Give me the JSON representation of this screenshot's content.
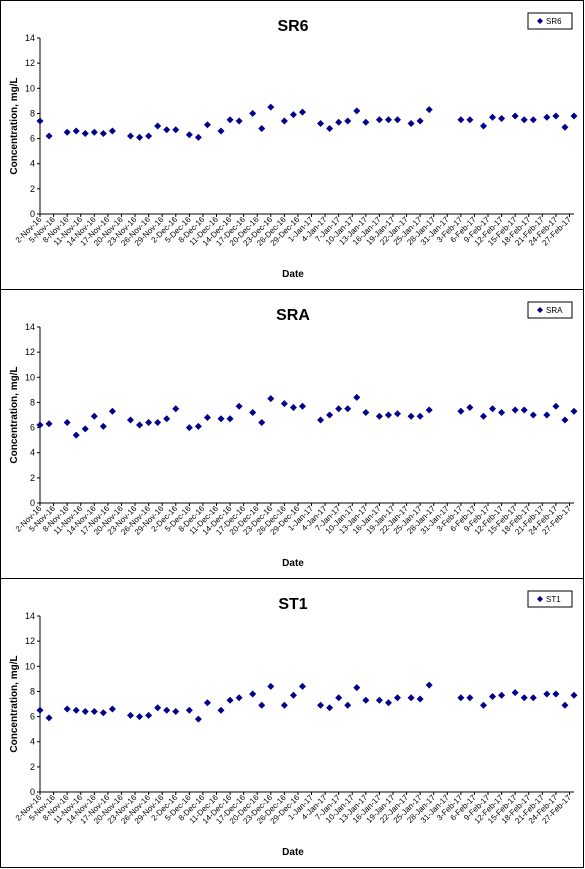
{
  "chart_data": [
    {
      "type": "scatter",
      "title": "SR6",
      "xlabel": "Date",
      "ylabel": "Concentration, mg/L",
      "ylim": [
        0,
        14
      ],
      "yticks": [
        0,
        2,
        4,
        6,
        8,
        10,
        12,
        14
      ],
      "grid": false,
      "legend_position": "top-right",
      "series": [
        {
          "name": "SR6",
          "color": "#00008B",
          "marker": "diamond",
          "points": [
            [
              "2016-11-02",
              7.4
            ],
            [
              "2016-11-04",
              6.2
            ],
            [
              "2016-11-08",
              6.5
            ],
            [
              "2016-11-10",
              6.6
            ],
            [
              "2016-11-12",
              6.4
            ],
            [
              "2016-11-14",
              6.5
            ],
            [
              "2016-11-16",
              6.4
            ],
            [
              "2016-11-18",
              6.6
            ],
            [
              "2016-11-22",
              6.2
            ],
            [
              "2016-11-24",
              6.1
            ],
            [
              "2016-11-26",
              6.2
            ],
            [
              "2016-11-28",
              7.0
            ],
            [
              "2016-11-30",
              6.7
            ],
            [
              "2016-12-02",
              6.7
            ],
            [
              "2016-12-05",
              6.3
            ],
            [
              "2016-12-07",
              6.1
            ],
            [
              "2016-12-09",
              7.1
            ],
            [
              "2016-12-12",
              6.6
            ],
            [
              "2016-12-14",
              7.5
            ],
            [
              "2016-12-16",
              7.4
            ],
            [
              "2016-12-19",
              8.0
            ],
            [
              "2016-12-21",
              6.8
            ],
            [
              "2016-12-23",
              8.5
            ],
            [
              "2016-12-26",
              7.4
            ],
            [
              "2016-12-28",
              7.9
            ],
            [
              "2016-12-30",
              8.1
            ],
            [
              "2017-01-03",
              7.2
            ],
            [
              "2017-01-05",
              6.8
            ],
            [
              "2017-01-07",
              7.3
            ],
            [
              "2017-01-09",
              7.4
            ],
            [
              "2017-01-11",
              8.2
            ],
            [
              "2017-01-13",
              7.3
            ],
            [
              "2017-01-16",
              7.5
            ],
            [
              "2017-01-18",
              7.5
            ],
            [
              "2017-01-20",
              7.5
            ],
            [
              "2017-01-23",
              7.2
            ],
            [
              "2017-01-25",
              7.4
            ],
            [
              "2017-01-27",
              8.3
            ],
            [
              "2017-02-03",
              7.5
            ],
            [
              "2017-02-05",
              7.5
            ],
            [
              "2017-02-08",
              7.0
            ],
            [
              "2017-02-10",
              7.7
            ],
            [
              "2017-02-12",
              7.6
            ],
            [
              "2017-02-15",
              7.8
            ],
            [
              "2017-02-17",
              7.5
            ],
            [
              "2017-02-19",
              7.5
            ],
            [
              "2017-02-22",
              7.7
            ],
            [
              "2017-02-24",
              7.8
            ],
            [
              "2017-02-26",
              6.9
            ],
            [
              "2017-02-28",
              7.8
            ]
          ]
        }
      ]
    },
    {
      "type": "scatter",
      "title": "SRA",
      "xlabel": "Date",
      "ylabel": "Concentration, mg/L",
      "ylim": [
        0,
        14
      ],
      "yticks": [
        0,
        2,
        4,
        6,
        8,
        10,
        12,
        14
      ],
      "grid": false,
      "legend_position": "top-right",
      "series": [
        {
          "name": "SRA",
          "color": "#00008B",
          "marker": "diamond",
          "points": [
            [
              "2016-11-02",
              6.2
            ],
            [
              "2016-11-04",
              6.3
            ],
            [
              "2016-11-08",
              6.4
            ],
            [
              "2016-11-10",
              5.4
            ],
            [
              "2016-11-12",
              5.9
            ],
            [
              "2016-11-14",
              6.9
            ],
            [
              "2016-11-16",
              6.1
            ],
            [
              "2016-11-18",
              7.3
            ],
            [
              "2016-11-22",
              6.6
            ],
            [
              "2016-11-24",
              6.2
            ],
            [
              "2016-11-26",
              6.4
            ],
            [
              "2016-11-28",
              6.4
            ],
            [
              "2016-11-30",
              6.7
            ],
            [
              "2016-12-02",
              7.5
            ],
            [
              "2016-12-05",
              6.0
            ],
            [
              "2016-12-07",
              6.1
            ],
            [
              "2016-12-09",
              6.8
            ],
            [
              "2016-12-12",
              6.7
            ],
            [
              "2016-12-14",
              6.7
            ],
            [
              "2016-12-16",
              7.7
            ],
            [
              "2016-12-19",
              7.2
            ],
            [
              "2016-12-21",
              6.4
            ],
            [
              "2016-12-23",
              8.3
            ],
            [
              "2016-12-26",
              7.9
            ],
            [
              "2016-12-28",
              7.6
            ],
            [
              "2016-12-30",
              7.7
            ],
            [
              "2017-01-03",
              6.6
            ],
            [
              "2017-01-05",
              7.0
            ],
            [
              "2017-01-07",
              7.5
            ],
            [
              "2017-01-09",
              7.5
            ],
            [
              "2017-01-11",
              8.4
            ],
            [
              "2017-01-13",
              7.2
            ],
            [
              "2017-01-16",
              6.9
            ],
            [
              "2017-01-18",
              7.0
            ],
            [
              "2017-01-20",
              7.1
            ],
            [
              "2017-01-23",
              6.9
            ],
            [
              "2017-01-25",
              6.9
            ],
            [
              "2017-01-27",
              7.4
            ],
            [
              "2017-02-03",
              7.3
            ],
            [
              "2017-02-05",
              7.6
            ],
            [
              "2017-02-08",
              6.9
            ],
            [
              "2017-02-10",
              7.5
            ],
            [
              "2017-02-12",
              7.2
            ],
            [
              "2017-02-15",
              7.4
            ],
            [
              "2017-02-17",
              7.4
            ],
            [
              "2017-02-19",
              7.0
            ],
            [
              "2017-02-22",
              7.0
            ],
            [
              "2017-02-24",
              7.7
            ],
            [
              "2017-02-26",
              6.6
            ],
            [
              "2017-02-28",
              7.3
            ]
          ]
        }
      ]
    },
    {
      "type": "scatter",
      "title": "ST1",
      "xlabel": "Date",
      "ylabel": "Concentration, mg/L",
      "ylim": [
        0,
        14
      ],
      "yticks": [
        0,
        2,
        4,
        6,
        8,
        10,
        12,
        14
      ],
      "grid": false,
      "legend_position": "top-right",
      "series": [
        {
          "name": "ST1",
          "color": "#00008B",
          "marker": "diamond",
          "points": [
            [
              "2016-11-02",
              6.5
            ],
            [
              "2016-11-04",
              5.9
            ],
            [
              "2016-11-08",
              6.6
            ],
            [
              "2016-11-10",
              6.5
            ],
            [
              "2016-11-12",
              6.4
            ],
            [
              "2016-11-14",
              6.4
            ],
            [
              "2016-11-16",
              6.3
            ],
            [
              "2016-11-18",
              6.6
            ],
            [
              "2016-11-22",
              6.1
            ],
            [
              "2016-11-24",
              6.0
            ],
            [
              "2016-11-26",
              6.1
            ],
            [
              "2016-11-28",
              6.7
            ],
            [
              "2016-11-30",
              6.5
            ],
            [
              "2016-12-02",
              6.4
            ],
            [
              "2016-12-05",
              6.5
            ],
            [
              "2016-12-07",
              5.8
            ],
            [
              "2016-12-09",
              7.1
            ],
            [
              "2016-12-12",
              6.5
            ],
            [
              "2016-12-14",
              7.3
            ],
            [
              "2016-12-16",
              7.5
            ],
            [
              "2016-12-19",
              7.8
            ],
            [
              "2016-12-21",
              6.9
            ],
            [
              "2016-12-23",
              8.4
            ],
            [
              "2016-12-26",
              6.9
            ],
            [
              "2016-12-28",
              7.7
            ],
            [
              "2016-12-30",
              8.4
            ],
            [
              "2017-01-03",
              6.9
            ],
            [
              "2017-01-05",
              6.7
            ],
            [
              "2017-01-07",
              7.5
            ],
            [
              "2017-01-09",
              6.9
            ],
            [
              "2017-01-11",
              8.3
            ],
            [
              "2017-01-13",
              7.3
            ],
            [
              "2017-01-16",
              7.3
            ],
            [
              "2017-01-18",
              7.1
            ],
            [
              "2017-01-20",
              7.5
            ],
            [
              "2017-01-23",
              7.5
            ],
            [
              "2017-01-25",
              7.4
            ],
            [
              "2017-01-27",
              8.5
            ],
            [
              "2017-02-03",
              7.5
            ],
            [
              "2017-02-05",
              7.5
            ],
            [
              "2017-02-08",
              6.9
            ],
            [
              "2017-02-10",
              7.6
            ],
            [
              "2017-02-12",
              7.7
            ],
            [
              "2017-02-15",
              7.9
            ],
            [
              "2017-02-17",
              7.5
            ],
            [
              "2017-02-19",
              7.5
            ],
            [
              "2017-02-22",
              7.8
            ],
            [
              "2017-02-24",
              7.8
            ],
            [
              "2017-02-26",
              6.9
            ],
            [
              "2017-02-28",
              7.7
            ]
          ]
        }
      ]
    }
  ],
  "x_axis": {
    "tick_labels": [
      "2-Nov-16",
      "5-Nov-16",
      "8-Nov-16",
      "11-Nov-16",
      "14-Nov-16",
      "17-Nov-16",
      "20-Nov-16",
      "23-Nov-16",
      "26-Nov-16",
      "29-Nov-16",
      "2-Dec-16",
      "5-Dec-16",
      "8-Dec-16",
      "11-Dec-16",
      "14-Dec-16",
      "17-Dec-16",
      "20-Dec-16",
      "23-Dec-16",
      "26-Dec-16",
      "29-Dec-16",
      "1-Jan-17",
      "4-Jan-17",
      "7-Jan-17",
      "10-Jan-17",
      "13-Jan-17",
      "16-Jan-17",
      "19-Jan-17",
      "22-Jan-17",
      "25-Jan-17",
      "28-Jan-17",
      "31-Jan-17",
      "3-Feb-17",
      "6-Feb-17",
      "9-Feb-17",
      "12-Feb-17",
      "15-Feb-17",
      "18-Feb-17",
      "21-Feb-17",
      "24-Feb-17",
      "27-Feb-17"
    ],
    "range": [
      "2016-11-02",
      "2017-02-28"
    ],
    "tick_interval_days": 3
  }
}
